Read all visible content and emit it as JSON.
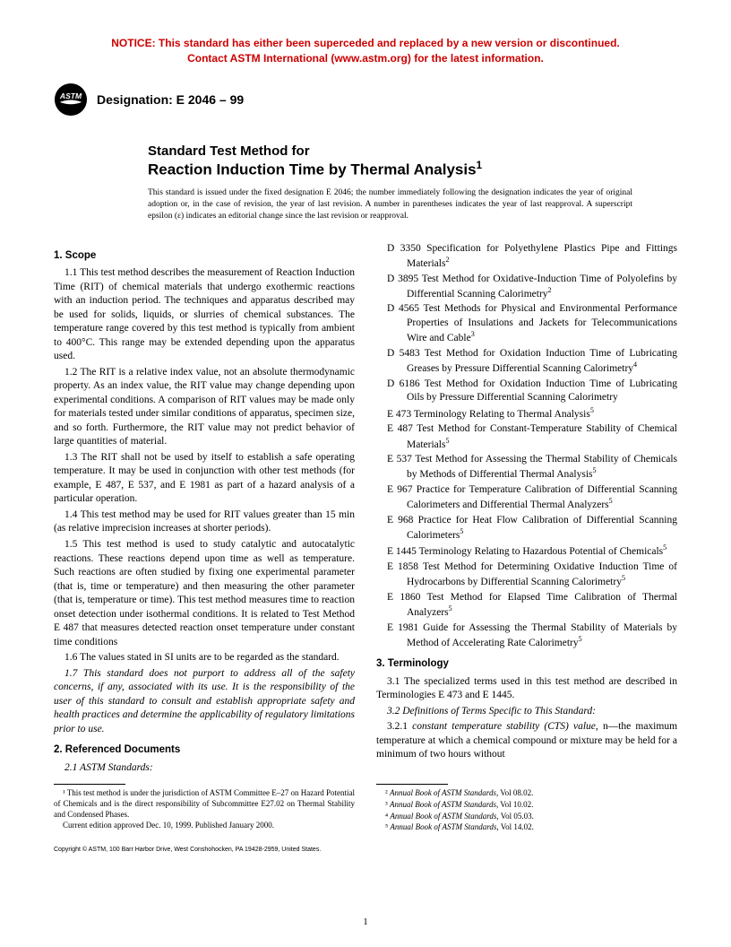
{
  "notice": {
    "color": "#cc0000",
    "line1": "NOTICE: This standard has either been superceded and replaced by a new version or discontinued.",
    "line2": "Contact ASTM International (www.astm.org) for the latest information."
  },
  "designation": {
    "label": "Designation: E 2046 – 99"
  },
  "title": {
    "line1": "Standard Test Method for",
    "line2": "Reaction Induction Time by Thermal Analysis",
    "sup": "1"
  },
  "issuance": "This standard is issued under the fixed designation E 2046; the number immediately following the designation indicates the year of original adoption or, in the case of revision, the year of last revision. A number in parentheses indicates the year of last reapproval. A superscript epsilon (ε) indicates an editorial change since the last revision or reapproval.",
  "sections": {
    "scope": {
      "num": "1.",
      "title": "Scope",
      "p1": "1.1 This test method describes the measurement of Reaction Induction Time (RIT) of chemical materials that undergo exothermic reactions with an induction period. The techniques and apparatus described may be used for solids, liquids, or slurries of chemical substances. The temperature range covered by this test method is typically from ambient to 400°C. This range may be extended depending upon the apparatus used.",
      "p2": "1.2 The RIT is a relative index value, not an absolute thermodynamic property. As an index value, the RIT value may change depending upon experimental conditions. A comparison of RIT values may be made only for materials tested under similar conditions of apparatus, specimen size, and so forth. Furthermore, the RIT value may not predict behavior of large quantities of material.",
      "p3": "1.3 The RIT shall not be used by itself to establish a safe operating temperature. It may be used in conjunction with other test methods (for example, E 487, E 537, and E 1981 as part of a hazard analysis of a particular operation.",
      "p4": "1.4 This test method may be used for RIT values greater than 15 min (as relative imprecision increases at shorter periods).",
      "p5": "1.5 This test method is used to study catalytic and autocatalytic reactions. These reactions depend upon time as well as temperature. Such reactions are often studied by fixing one experimental parameter (that is, time or temperature) and then measuring the other parameter (that is, temperature or time). This test method measures time to reaction onset detection under isothermal conditions. It is related to Test Method E 487 that measures detected reaction onset temperature under constant time conditions",
      "p6": "1.6 The values stated in SI units are to be regarded as the standard.",
      "p7": "1.7 This standard does not purport to address all of the safety concerns, if any, associated with its use. It is the responsibility of the user of this standard to consult and establish appropriate safety and health practices and determine the applicability of regulatory limitations prior to use."
    },
    "refdocs": {
      "num": "2.",
      "title": "Referenced Documents",
      "sub": "2.1 ASTM Standards:",
      "items": [
        {
          "code": "D 3350",
          "text": "Specification for Polyethylene Plastics Pipe and Fittings Materials",
          "sup": "2"
        },
        {
          "code": "D 3895",
          "text": "Test Method for Oxidative-Induction Time of Polyolefins by Differential Scanning Calorimetry",
          "sup": "2"
        },
        {
          "code": "D 4565",
          "text": "Test Methods for Physical and Environmental Performance Properties of Insulations and Jackets for Telecommunications Wire and Cable",
          "sup": "3"
        },
        {
          "code": "D 5483",
          "text": "Test Method for Oxidation Induction Time of Lubricating Greases by Pressure Differential Scanning Calorimetry",
          "sup": "4"
        },
        {
          "code": "D 6186",
          "text": "Test Method for Oxidation Induction Time of Lubricating Oils by Pressure Differential Scanning Calorimetry",
          "sup": ""
        },
        {
          "code": "E 473",
          "text": "Terminology Relating to Thermal Analysis",
          "sup": "5"
        },
        {
          "code": "E 487",
          "text": "Test Method for Constant-Temperature Stability of Chemical Materials",
          "sup": "5"
        },
        {
          "code": "E 537",
          "text": "Test Method for Assessing the Thermal Stability of Chemicals by Methods of Differential Thermal Analysis",
          "sup": "5"
        },
        {
          "code": "E 967",
          "text": "Practice for Temperature Calibration of Differential Scanning Calorimeters and Differential Thermal Analyzers",
          "sup": "5"
        },
        {
          "code": "E 968",
          "text": "Practice for Heat Flow Calibration of Differential Scanning Calorimeters",
          "sup": "5"
        },
        {
          "code": "E 1445",
          "text": "Terminology Relating to Hazardous Potential of Chemicals",
          "sup": "5"
        },
        {
          "code": "E 1858",
          "text": "Test Method for Determining Oxidative Induction Time of Hydrocarbons by Differential Scanning Calorimetry",
          "sup": "5"
        },
        {
          "code": "E 1860",
          "text": "Test Method for Elapsed Time Calibration of Thermal Analyzers",
          "sup": "5"
        },
        {
          "code": "E 1981",
          "text": "Guide for Assessing the Thermal Stability of Materials by Method of Accelerating Rate Calorimetry",
          "sup": "5"
        }
      ]
    },
    "terminology": {
      "num": "3.",
      "title": "Terminology",
      "p1": "3.1 The specialized terms used in this test method are described in Terminologies E 473 and E 1445.",
      "p2": "3.2 Definitions of Terms Specific to This Standard:",
      "p3a": "3.2.1 ",
      "p3term": "constant temperature stability (CTS) value",
      "p3b": ", n—the maximum temperature at which a chemical compound or mixture may be held for a minimum of two hours without"
    }
  },
  "footnotes": {
    "left": [
      "¹ This test method is under the jurisdiction of ASTM Committee E–27 on Hazard Potential of Chemicals and is the direct responsibility of Subcommittee E27.02 on Thermal Stability and Condensed Phases.",
      "Current edition approved Dec. 10, 1999. Published January 2000."
    ],
    "right": [
      "² Annual Book of ASTM Standards, Vol 08.02.",
      "³ Annual Book of ASTM Standards, Vol 10.02.",
      "⁴ Annual Book of ASTM Standards, Vol 05.03.",
      "⁵ Annual Book of ASTM Standards, Vol 14.02."
    ]
  },
  "copyright": "Copyright © ASTM, 100 Barr Harbor Drive, West Conshohocken, PA 19428-2959, United States.",
  "pagenum": "1"
}
